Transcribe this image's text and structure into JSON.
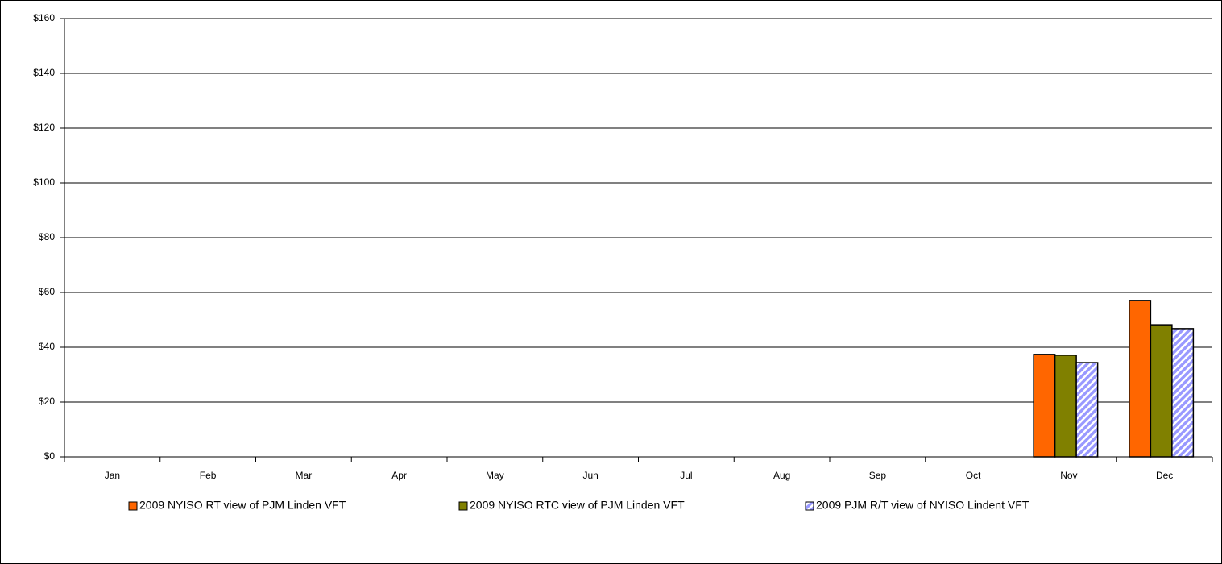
{
  "chart_data": {
    "type": "bar",
    "categories": [
      "Jan",
      "Feb",
      "Mar",
      "Apr",
      "May",
      "Jun",
      "Jul",
      "Aug",
      "Sep",
      "Oct",
      "Nov",
      "Dec"
    ],
    "series": [
      {
        "name": "2009 NYISO RT view of PJM Linden VFT",
        "color": "#ff6600",
        "values": [
          null,
          null,
          null,
          null,
          null,
          null,
          null,
          null,
          null,
          null,
          37.4,
          57.1
        ]
      },
      {
        "name": "2009 NYISO RTC view of PJM Linden VFT",
        "color": "#808000",
        "values": [
          null,
          null,
          null,
          null,
          null,
          null,
          null,
          null,
          null,
          null,
          37.1,
          48.2
        ]
      },
      {
        "name": "2009 PJM R/T view of NYISO Lindent VFT",
        "color": "#9999ff",
        "hatch": true,
        "values": [
          null,
          null,
          null,
          null,
          null,
          null,
          null,
          null,
          null,
          null,
          34.4,
          46.8
        ]
      }
    ],
    "ylim": [
      0,
      160
    ],
    "yticks": [
      {
        "value": 0,
        "label": "$0"
      },
      {
        "value": 20,
        "label": "$20"
      },
      {
        "value": 40,
        "label": "$40"
      },
      {
        "value": 60,
        "label": "$60"
      },
      {
        "value": 80,
        "label": "$80"
      },
      {
        "value": 100,
        "label": "$100"
      },
      {
        "value": 120,
        "label": "$120"
      },
      {
        "value": 140,
        "label": "$140"
      },
      {
        "value": 160,
        "label": "$160"
      }
    ],
    "grid": true,
    "legend": "bottom"
  }
}
